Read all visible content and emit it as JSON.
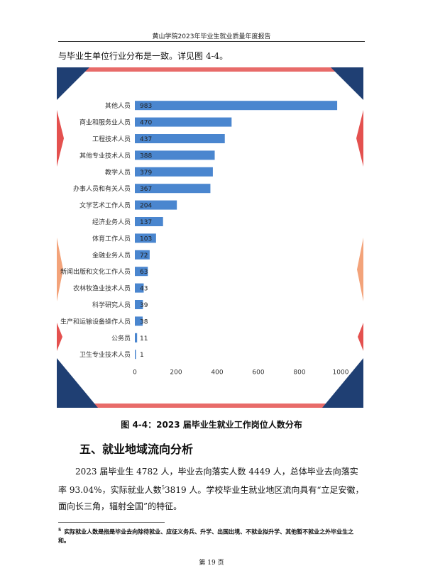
{
  "header": {
    "title": "黄山学院2023年毕业生就业质量年度报告"
  },
  "intro": "与毕业生单位行业分布是一致。详见图 4-4。",
  "chart_data": {
    "type": "bar",
    "orientation": "horizontal",
    "categories": [
      "其他人员",
      "商业和服务业人员",
      "工程技术人员",
      "其他专业技术人员",
      "教学人员",
      "办事人员和有关人员",
      "文学艺术工作人员",
      "经济业务人员",
      "体育工作人员",
      "金融业务人员",
      "新闻出版和文化工作人员",
      "农林牧渔业技术人员",
      "科学研究人员",
      "生产和运输设备操作人员",
      "公务员",
      "卫生专业技术人员"
    ],
    "values": [
      983,
      470,
      437,
      388,
      379,
      367,
      204,
      137,
      103,
      72,
      63,
      43,
      39,
      38,
      11,
      1
    ],
    "xlim": [
      0,
      1000
    ],
    "xticks": [
      0,
      200,
      400,
      600,
      800,
      1000
    ],
    "grid": false,
    "bar_color": "#4a86cf",
    "frame_colors": {
      "navy": "#1f3f73",
      "red": "#e4514f",
      "orange": "#f3a37a"
    }
  },
  "caption": "图 4-4：2023 届毕业生就业工作岗位人数分布",
  "section_title": "五、就业地域流向分析",
  "paragraph": {
    "part1": "2023 届毕业生 4782 人，毕业去向落实人数 4449 人，总体毕业去向落实率 93.04%，实际就业人数",
    "fn_mark": "5",
    "part2": "3819 人。学校毕业生就业地区流向具有“立足安徽，面向长三角，辐射全国”的特征。"
  },
  "footnote": {
    "mark": "5",
    "text": "实际就业人数是指是毕业去向除待就业、应征义务兵、升学、出国出境、不就业拟升学、其他暂不就业之外毕业生之和。"
  },
  "page_number": "第 19 页"
}
